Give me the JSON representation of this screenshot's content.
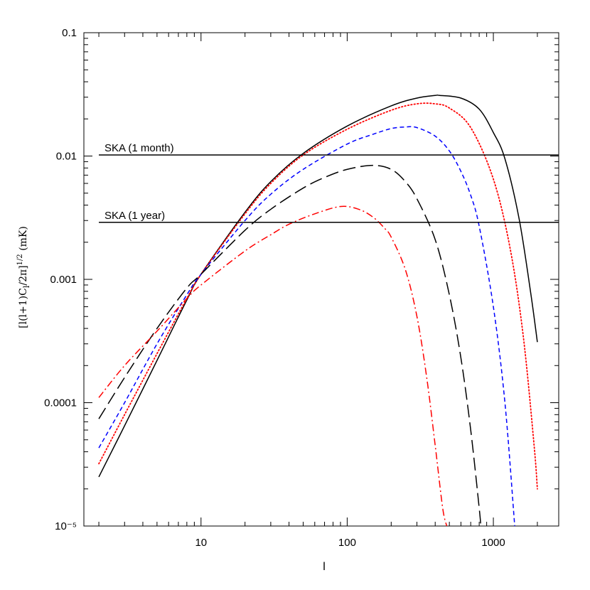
{
  "chart_data": {
    "type": "line",
    "xlabel": "l",
    "ylabel": "[l(l+1)C_l/2π]^{1/2} (mK)",
    "xscale": "log",
    "yscale": "log",
    "xlim": [
      1.58,
      2800
    ],
    "ylim": [
      1e-05,
      0.1
    ],
    "x_ticks": [
      {
        "value": 10,
        "label": "10"
      },
      {
        "value": 100,
        "label": "100"
      },
      {
        "value": 1000,
        "label": "1000"
      }
    ],
    "y_ticks": [
      {
        "value": 0.1,
        "label": "0.1"
      },
      {
        "value": 0.01,
        "label": "0.01"
      },
      {
        "value": 0.001,
        "label": "0.001"
      },
      {
        "value": 0.0001,
        "label": "0.0001"
      },
      {
        "value": 1e-05,
        "label": "10⁻⁵"
      }
    ],
    "annotations": [
      {
        "text": "SKA (1 month)",
        "y": 0.0102,
        "x_start": 2,
        "x_end": 2800,
        "color": "#000000"
      },
      {
        "text": "SKA (1 year)",
        "y": 0.0029,
        "x_start": 2,
        "x_end": 2800,
        "color": "#000000"
      }
    ],
    "series": [
      {
        "color": "#000000",
        "style": "solid",
        "x": [
          2,
          3,
          5,
          8,
          10,
          20,
          30,
          50,
          100,
          200,
          300,
          400,
          430,
          600,
          800,
          1000,
          1200,
          1500,
          1800,
          2000
        ],
        "y": [
          2.5e-05,
          6.5e-05,
          0.00022,
          0.00068,
          0.0011,
          0.0035,
          0.0062,
          0.0105,
          0.0175,
          0.0255,
          0.0295,
          0.031,
          0.031,
          0.0295,
          0.024,
          0.0155,
          0.0095,
          0.0031,
          0.00078,
          0.00031
        ]
      },
      {
        "color": "#ff0000",
        "style": "dotted",
        "x": [
          2,
          3,
          5,
          8,
          10,
          20,
          30,
          50,
          100,
          200,
          300,
          400,
          500,
          700,
          1000,
          1300,
          1600,
          1900,
          2000
        ],
        "y": [
          3.2e-05,
          8e-05,
          0.00025,
          0.0007,
          0.0011,
          0.0034,
          0.006,
          0.0102,
          0.0165,
          0.0235,
          0.0265,
          0.0265,
          0.0245,
          0.017,
          0.0065,
          0.0018,
          0.00035,
          4.5e-05,
          2e-05
        ]
      },
      {
        "color": "#0000ff",
        "style": "dashed",
        "x": [
          2,
          3,
          5,
          8,
          10,
          20,
          30,
          50,
          100,
          150,
          200,
          250,
          300,
          400,
          500,
          600,
          700,
          800,
          1000,
          1200,
          1400
        ],
        "y": [
          4.3e-05,
          0.0001,
          0.0003,
          0.00075,
          0.0011,
          0.003,
          0.0049,
          0.0078,
          0.0125,
          0.015,
          0.0167,
          0.0172,
          0.017,
          0.0145,
          0.011,
          0.0075,
          0.0048,
          0.0027,
          0.0006,
          0.0001,
          1e-05
        ]
      },
      {
        "color": "#000000",
        "style": "long-dashed",
        "x": [
          2,
          3,
          5,
          8,
          10,
          20,
          30,
          50,
          70,
          100,
          150,
          200,
          250,
          300,
          400,
          500,
          600,
          700,
          800,
          820
        ],
        "y": [
          7.4e-05,
          0.00016,
          0.0004,
          0.00085,
          0.0011,
          0.0025,
          0.0037,
          0.0055,
          0.0067,
          0.0078,
          0.0084,
          0.0078,
          0.0062,
          0.0045,
          0.0021,
          0.00075,
          0.00023,
          6e-05,
          1.4e-05,
          1e-05
        ]
      },
      {
        "color": "#ff0000",
        "style": "dash-dot",
        "x": [
          2,
          3,
          5,
          8,
          10,
          20,
          30,
          40,
          60,
          90,
          120,
          150,
          180,
          200,
          250,
          300,
          350,
          400,
          450,
          480
        ],
        "y": [
          0.00011,
          0.0002,
          0.00038,
          0.0007,
          0.0009,
          0.0017,
          0.0023,
          0.0028,
          0.0034,
          0.0039,
          0.0037,
          0.0032,
          0.0026,
          0.0022,
          0.0012,
          0.0005,
          0.00016,
          4.5e-05,
          1.4e-05,
          1e-05
        ]
      }
    ]
  }
}
